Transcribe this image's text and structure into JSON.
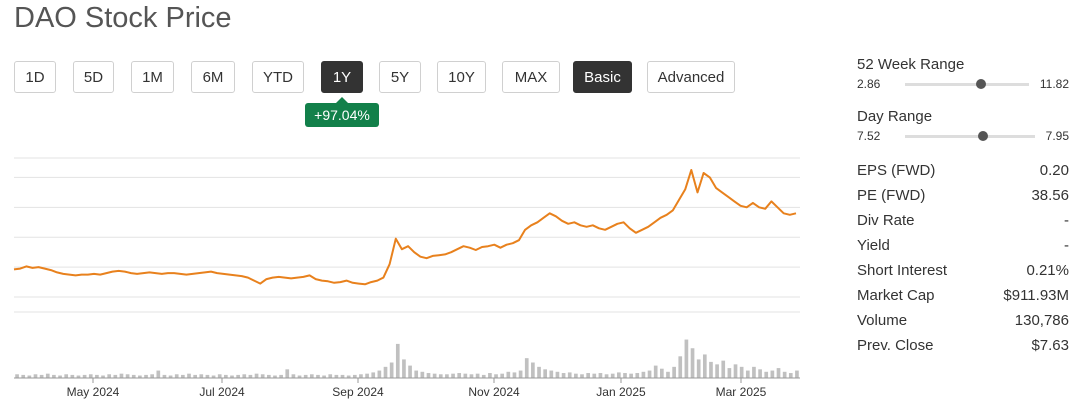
{
  "title": "DAO Stock Price",
  "range_buttons": [
    {
      "label": "1D",
      "active": false
    },
    {
      "label": "5D",
      "active": false
    },
    {
      "label": "1M",
      "active": false
    },
    {
      "label": "6M",
      "active": false
    },
    {
      "label": "YTD",
      "active": false
    },
    {
      "label": "1Y",
      "active": true
    },
    {
      "label": "5Y",
      "active": false
    },
    {
      "label": "10Y",
      "active": false
    },
    {
      "label": "MAX",
      "active": false
    }
  ],
  "view_buttons": [
    {
      "label": "Basic",
      "active": true
    },
    {
      "label": "Advanced",
      "active": false
    }
  ],
  "change_badge": "+97.04%",
  "colors": {
    "line": "#e8811d",
    "badge": "#12804a",
    "active_button": "#333333",
    "volume": "#c0c0c0"
  },
  "stats": {
    "week52": {
      "title": "52 Week Range",
      "low": "2.86",
      "high": "11.82",
      "current_fraction": 0.61
    },
    "day": {
      "title": "Day Range",
      "low": "7.52",
      "high": "7.95",
      "current_fraction": 0.6
    },
    "rows": [
      {
        "label": "EPS (FWD)",
        "value": "0.20"
      },
      {
        "label": "PE (FWD)",
        "value": "38.56"
      },
      {
        "label": "Div Rate",
        "value": "-"
      },
      {
        "label": "Yield",
        "value": "-"
      },
      {
        "label": "Short Interest",
        "value": "0.21%"
      },
      {
        "label": "Market Cap",
        "value": "$911.93M"
      },
      {
        "label": "Volume",
        "value": "130,786"
      },
      {
        "label": "Prev. Close",
        "value": "$7.63"
      }
    ]
  },
  "chart_data": {
    "type": "line",
    "title": "",
    "xlabel": "",
    "ylabel": "",
    "x_ticks": [
      "May 2024",
      "Jul 2024",
      "Sep 2024",
      "Nov 2024",
      "Jan 2025",
      "Mar 2025"
    ],
    "y_ticks": [
      2,
      4,
      6,
      8,
      10
    ],
    "ylim": [
      1,
      11.3
    ],
    "grid": true,
    "series": [
      {
        "values": [
          3.85,
          3.9,
          4.05,
          3.95,
          4.0,
          3.9,
          3.8,
          3.65,
          3.55,
          3.5,
          3.45,
          3.5,
          3.5,
          3.55,
          3.5,
          3.6,
          3.7,
          3.75,
          3.7,
          3.6,
          3.55,
          3.6,
          3.65,
          3.6,
          3.55,
          3.6,
          3.6,
          3.55,
          3.5,
          3.55,
          3.6,
          3.65,
          3.7,
          3.6,
          3.55,
          3.5,
          3.45,
          3.4,
          3.3,
          3.1,
          2.9,
          3.2,
          3.3,
          3.35,
          3.3,
          3.25,
          3.3,
          3.35,
          3.45,
          3.2,
          3.1,
          3.05,
          2.95,
          3.0,
          3.1,
          2.95,
          2.9,
          2.85,
          3.0,
          3.1,
          3.3,
          4.2,
          5.9,
          5.2,
          5.4,
          5.0,
          4.7,
          4.6,
          4.75,
          4.8,
          4.85,
          5.0,
          5.2,
          5.4,
          5.3,
          5.15,
          5.35,
          5.4,
          5.5,
          5.3,
          5.5,
          5.6,
          5.8,
          6.5,
          6.8,
          7.0,
          7.3,
          7.6,
          7.4,
          7.1,
          6.9,
          7.0,
          6.8,
          6.7,
          6.8,
          6.6,
          6.5,
          6.7,
          6.9,
          7.0,
          6.6,
          6.3,
          6.5,
          6.7,
          7.0,
          7.3,
          7.5,
          7.8,
          8.5,
          9.2,
          10.5,
          9.0,
          10.3,
          10.0,
          9.3,
          9.0,
          8.7,
          8.4,
          8.1,
          8.0,
          8.3,
          8.0,
          7.9,
          8.4,
          8.0,
          7.6,
          7.5,
          7.6
        ]
      }
    ],
    "volume": {
      "values": [
        0.06,
        0.05,
        0.04,
        0.06,
        0.05,
        0.07,
        0.05,
        0.04,
        0.06,
        0.05,
        0.04,
        0.05,
        0.06,
        0.05,
        0.04,
        0.06,
        0.05,
        0.07,
        0.06,
        0.05,
        0.04,
        0.05,
        0.06,
        0.12,
        0.05,
        0.04,
        0.06,
        0.05,
        0.07,
        0.05,
        0.06,
        0.05,
        0.04,
        0.06,
        0.05,
        0.04,
        0.05,
        0.06,
        0.05,
        0.07,
        0.06,
        0.05,
        0.04,
        0.05,
        0.14,
        0.06,
        0.04,
        0.05,
        0.06,
        0.05,
        0.04,
        0.06,
        0.05,
        0.05,
        0.04,
        0.05,
        0.06,
        0.07,
        0.09,
        0.12,
        0.18,
        0.25,
        0.55,
        0.3,
        0.2,
        0.12,
        0.1,
        0.08,
        0.07,
        0.06,
        0.06,
        0.07,
        0.08,
        0.07,
        0.06,
        0.07,
        0.05,
        0.08,
        0.06,
        0.07,
        0.1,
        0.09,
        0.12,
        0.32,
        0.25,
        0.18,
        0.14,
        0.12,
        0.1,
        0.08,
        0.09,
        0.07,
        0.06,
        0.08,
        0.07,
        0.08,
        0.06,
        0.07,
        0.09,
        0.08,
        0.07,
        0.08,
        0.1,
        0.12,
        0.2,
        0.15,
        0.1,
        0.18,
        0.35,
        0.62,
        0.48,
        0.3,
        0.38,
        0.26,
        0.22,
        0.28,
        0.16,
        0.22,
        0.18,
        0.12,
        0.18,
        0.14,
        0.1,
        0.12,
        0.16,
        0.1,
        0.08,
        0.12
      ]
    }
  }
}
